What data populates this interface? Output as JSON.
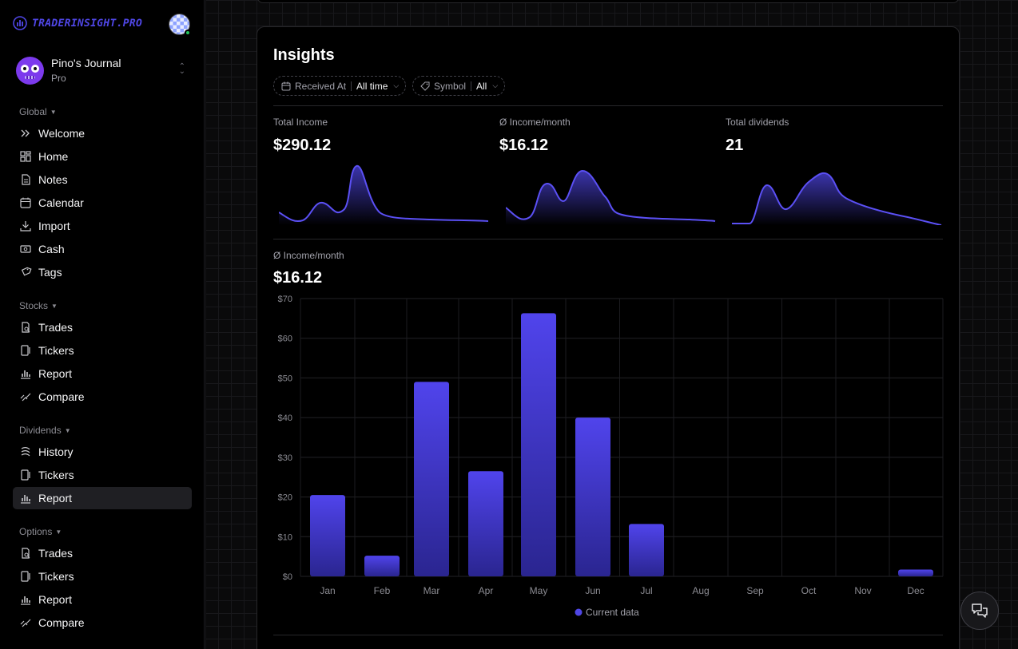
{
  "brand": {
    "name": "TRADERINSIGHT.PRO",
    "accent": "#4f46e5"
  },
  "journal": {
    "name": "Pino's Journal",
    "plan": "Pro"
  },
  "sidebar": {
    "global": {
      "label": "Global",
      "items": [
        {
          "label": "Welcome",
          "icon": "chevrons-right-icon"
        },
        {
          "label": "Home",
          "icon": "dashboard-icon"
        },
        {
          "label": "Notes",
          "icon": "document-icon"
        },
        {
          "label": "Calendar",
          "icon": "calendar-icon"
        },
        {
          "label": "Import",
          "icon": "download-icon"
        },
        {
          "label": "Cash",
          "icon": "cash-icon"
        },
        {
          "label": "Tags",
          "icon": "tags-icon"
        }
      ]
    },
    "stocks": {
      "label": "Stocks",
      "items": [
        {
          "label": "Trades",
          "icon": "trades-icon"
        },
        {
          "label": "Tickers",
          "icon": "tickers-icon"
        },
        {
          "label": "Report",
          "icon": "bar-chart-icon"
        },
        {
          "label": "Compare",
          "icon": "compare-icon"
        }
      ]
    },
    "dividends": {
      "label": "Dividends",
      "items": [
        {
          "label": "History",
          "icon": "history-icon"
        },
        {
          "label": "Tickers",
          "icon": "tickers-icon"
        },
        {
          "label": "Report",
          "icon": "bar-chart-icon",
          "active": true
        }
      ]
    },
    "options": {
      "label": "Options",
      "items": [
        {
          "label": "Trades",
          "icon": "trades-icon"
        },
        {
          "label": "Tickers",
          "icon": "tickers-icon"
        },
        {
          "label": "Report",
          "icon": "bar-chart-icon"
        },
        {
          "label": "Compare",
          "icon": "compare-icon"
        }
      ]
    }
  },
  "insights": {
    "title": "Insights",
    "filters": {
      "received": {
        "label": "Received At",
        "value": "All time"
      },
      "symbol": {
        "label": "Symbol",
        "value": "All"
      }
    },
    "stats": [
      {
        "label": "Total Income",
        "value": "$290.12"
      },
      {
        "label": "Ø Income/month",
        "value": "$16.12"
      },
      {
        "label": "Total dividends",
        "value": "21"
      }
    ],
    "monthly": {
      "label": "Ø Income/month",
      "value": "$16.12"
    }
  },
  "chart_data": {
    "type": "bar",
    "categories": [
      "Jan",
      "Feb",
      "Mar",
      "Apr",
      "May",
      "Jun",
      "Jul",
      "Aug",
      "Sep",
      "Oct",
      "Nov",
      "Dec"
    ],
    "series": [
      {
        "name": "Current data",
        "values": [
          20.5,
          5.2,
          49,
          26.5,
          66.3,
          40,
          13.2,
          0,
          0,
          0,
          0,
          1.7
        ],
        "color": "#4f46e5"
      }
    ],
    "ylim": [
      0,
      70
    ],
    "yticks": [
      "$0",
      "$10",
      "$20",
      "$30",
      "$40",
      "$50",
      "$60",
      "$70"
    ],
    "grid": true,
    "legend": "bottom"
  }
}
